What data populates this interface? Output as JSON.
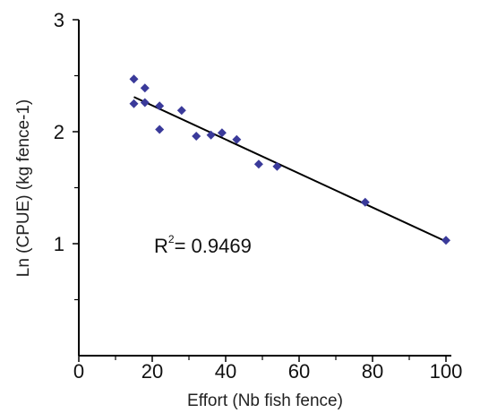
{
  "chart_data": {
    "type": "scatter",
    "title": "",
    "xlabel": "Effort  (Nb fish fence)",
    "ylabel": "Ln (CPUE) (kg fence-1)",
    "xlim": [
      0,
      100
    ],
    "ylim": [
      0,
      3
    ],
    "x_ticks": [
      0,
      20,
      40,
      60,
      80,
      100
    ],
    "x_minor_ticks": [
      10,
      30,
      50,
      70,
      90
    ],
    "y_ticks": [
      1,
      2,
      3
    ],
    "y_minor_ticks": [
      0.5,
      1.5,
      2.5
    ],
    "grid": false,
    "marker_color": "#3a3a9a",
    "line_color": "#000000",
    "series": [
      {
        "points": [
          {
            "x": 15,
            "y": 2.47
          },
          {
            "x": 15,
            "y": 2.25
          },
          {
            "x": 18,
            "y": 2.39
          },
          {
            "x": 18,
            "y": 2.26
          },
          {
            "x": 22,
            "y": 2.23
          },
          {
            "x": 22,
            "y": 2.02
          },
          {
            "x": 28,
            "y": 2.19
          },
          {
            "x": 32,
            "y": 1.96
          },
          {
            "x": 36,
            "y": 1.97
          },
          {
            "x": 39,
            "y": 1.99
          },
          {
            "x": 43,
            "y": 1.93
          },
          {
            "x": 49,
            "y": 1.71
          },
          {
            "x": 54,
            "y": 1.69
          },
          {
            "x": 78,
            "y": 1.37
          },
          {
            "x": 100,
            "y": 1.03
          }
        ]
      }
    ],
    "trendline": {
      "x": [
        15,
        100
      ],
      "y": [
        2.31,
        1.02
      ]
    },
    "annotation": {
      "text": "R",
      "sup": "2",
      "rest": "= 0.9469"
    }
  }
}
